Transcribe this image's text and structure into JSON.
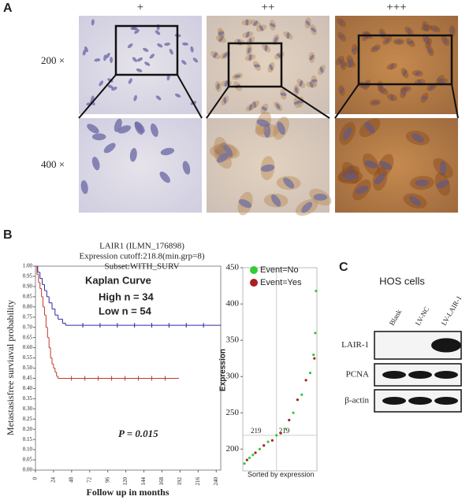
{
  "panel_a": {
    "label": "A",
    "columns": [
      "+",
      "++",
      "+++"
    ],
    "rows": [
      "200 ×",
      "400 ×"
    ]
  },
  "panel_b": {
    "label": "B"
  },
  "panel_c": {
    "label": "C",
    "title": "HOS cells",
    "lanes": [
      "Blank",
      "LV-NC",
      "LV-LAIR-1"
    ],
    "bands": [
      "LAIR-1",
      "PCNA",
      "β-actin"
    ]
  },
  "chart_data": [
    {
      "type": "km",
      "title": "Kaplan Curve",
      "subtitle": [
        "LAIR1 (ILMN_176898)",
        "Expression cutoff:218.8(min.grp=8)",
        "Subset:WITH_SURV"
      ],
      "x_label": "Follow up in months",
      "y_label": "Metastasisfree surviaval probability",
      "annotation": "P = 0.015",
      "xlim": [
        0,
        246
      ],
      "xticks": [
        0,
        24,
        48,
        72,
        96,
        120,
        144,
        168,
        192,
        216,
        240
      ],
      "ylim": [
        0,
        1
      ],
      "yticks": [
        {
          "value": 0,
          "label": "0.00"
        },
        {
          "value": 0.05,
          "label": "0.05"
        },
        {
          "value": 0.1,
          "label": "0.10"
        },
        {
          "value": 0.15,
          "label": "0.15"
        },
        {
          "value": 0.2,
          "label": "0.20"
        },
        {
          "value": 0.25,
          "label": "0.25"
        },
        {
          "value": 0.3,
          "label": "0.30"
        },
        {
          "value": 0.35,
          "label": "0.35"
        },
        {
          "value": 0.4,
          "label": "0.40"
        },
        {
          "value": 0.45,
          "label": "0.45"
        },
        {
          "value": 0.5,
          "label": "0.50"
        },
        {
          "value": 0.55,
          "label": "0.55"
        },
        {
          "value": 0.6,
          "label": "0.60"
        },
        {
          "value": 0.65,
          "label": "0.65"
        },
        {
          "value": 0.7,
          "label": "0.70"
        },
        {
          "value": 0.75,
          "label": "0.75"
        },
        {
          "value": 0.8,
          "label": "0.80"
        },
        {
          "value": 0.85,
          "label": "0.85"
        },
        {
          "value": 0.9,
          "label": "0.90"
        },
        {
          "value": 0.95,
          "label": "0.95"
        },
        {
          "value": 1,
          "label": "1.00"
        }
      ],
      "series": [
        {
          "name": "High n = 34",
          "color": "#2a2aa0",
          "x": [
            0,
            3,
            6,
            9,
            12,
            15,
            18,
            22,
            26,
            30,
            36,
            40,
            246
          ],
          "values": [
            1,
            0.97,
            0.94,
            0.91,
            0.88,
            0.85,
            0.82,
            0.79,
            0.76,
            0.74,
            0.72,
            0.71,
            0.71
          ]
        },
        {
          "name": "Low n = 54",
          "color": "#c0392b",
          "x": [
            0,
            2,
            4,
            6,
            8,
            10,
            12,
            14,
            16,
            18,
            20,
            22,
            24,
            26,
            28,
            30,
            190
          ],
          "values": [
            1,
            0.96,
            0.92,
            0.89,
            0.85,
            0.8,
            0.76,
            0.7,
            0.65,
            0.6,
            0.55,
            0.52,
            0.5,
            0.48,
            0.46,
            0.45,
            0.45
          ]
        }
      ]
    },
    {
      "type": "scatter",
      "x_label": "Sorted by expression",
      "y_label": "Expression",
      "xlim": [
        0,
        88
      ],
      "ylim": [
        170,
        450
      ],
      "yticks": [
        200,
        250,
        300,
        350,
        400,
        450
      ],
      "hline": 219,
      "vline": 40,
      "series": [
        {
          "name": "Event=No",
          "color": "#33cc33",
          "x": [
            2,
            8,
            12,
            20,
            30,
            40,
            50,
            60,
            70,
            80,
            84,
            86,
            87
          ],
          "values": [
            180,
            188,
            192,
            200,
            210,
            219,
            228,
            250,
            275,
            305,
            330,
            360,
            418
          ]
        },
        {
          "name": "Event=Yes",
          "color": "#aa1f1f",
          "x": [
            5,
            15,
            25,
            35,
            45,
            55,
            65,
            75,
            85
          ],
          "values": [
            185,
            195,
            205,
            212,
            222,
            240,
            268,
            295,
            325
          ]
        }
      ]
    }
  ]
}
